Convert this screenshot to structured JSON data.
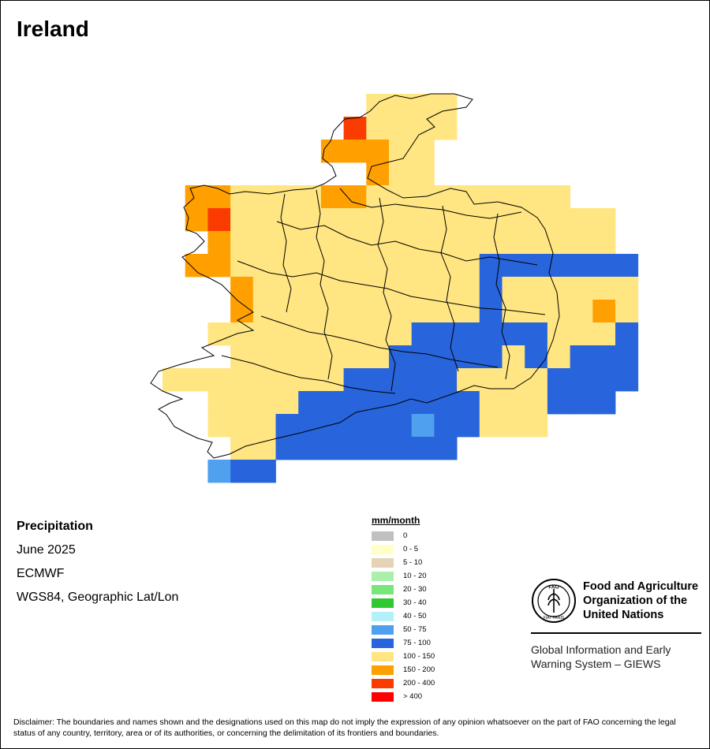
{
  "map": {
    "title": "Ireland",
    "variable": "Precipitation",
    "date": "June 2025",
    "source": "ECMWF",
    "projection": "WGS84, Geographic Lat/Lon",
    "legend": {
      "title": "mm/month",
      "classes": [
        {
          "label": "0",
          "color": "#c0c0c0"
        },
        {
          "label": "0 - 5",
          "color": "#ffffc8"
        },
        {
          "label": "5 - 10",
          "color": "#e6d2b4"
        },
        {
          "label": "10 - 20",
          "color": "#aaf0aa"
        },
        {
          "label": "20 - 30",
          "color": "#78e678"
        },
        {
          "label": "30 - 40",
          "color": "#32c832"
        },
        {
          "label": "40 - 50",
          "color": "#b4f0fa"
        },
        {
          "label": "50 - 75",
          "color": "#50a0f0"
        },
        {
          "label": "75 - 100",
          "color": "#2864dc"
        },
        {
          "label": "100 - 150",
          "color": "#ffe682"
        },
        {
          "label": "150 - 200",
          "color": "#ffa000"
        },
        {
          "label": "200 - 400",
          "color": "#fa3c00"
        },
        {
          "label": "> 400",
          "color": "#ff0000"
        }
      ]
    },
    "grid": {
      "code_key": {
        "Y": "100 - 150",
        "O": "150 - 200",
        "R": "200 - 400",
        "B": "75 - 100",
        "L": "50 - 75"
      },
      "rows": [
        ".........YYYY.........",
        "........RYYYY.........",
        ".......OOOYY..........",
        ".........OYY..........",
        ".OOYYYYOOYYYYYYYYY....",
        ".ORYYYYYYYYYYYYYYYYY..",
        "..OYYYYYYYYYYYYYYYYY..",
        ".OOYYYYYYYYYYYBBBBBBB.",
        "...OYYYYYYYYYYBYYYYYY.",
        "...OYYYYYYYYYYBYYYYOY.",
        "..YYYYYYYYYBBBBBBYYYB.",
        "...YYYYYYYBBBBBYBYBBB.",
        "YYYYYYYYBBBBBYYYYBBBB.",
        "..YYYYBBBBBBBBYYYBBB..",
        "..YYYBBBBBBLBBYYY.....",
        "...YYBBBBBBBB.........",
        "..LBB................."
      ]
    },
    "organization": {
      "name": "Food and Agriculture\nOrganization of the\nUnited Nations",
      "logo_text": "FIAT PANIS",
      "logo_letters": "FAO",
      "system": "Global Information and Early\nWarning System – GIEWS"
    },
    "disclaimer": "Disclaimer: The boundaries and names shown and the designations used on this map do not imply the expression of any opinion whatsoever on the part of FAO concerning the legal status of any country, territory, area or of its authorities, or concerning the delimitation of its frontiers and boundaries."
  }
}
